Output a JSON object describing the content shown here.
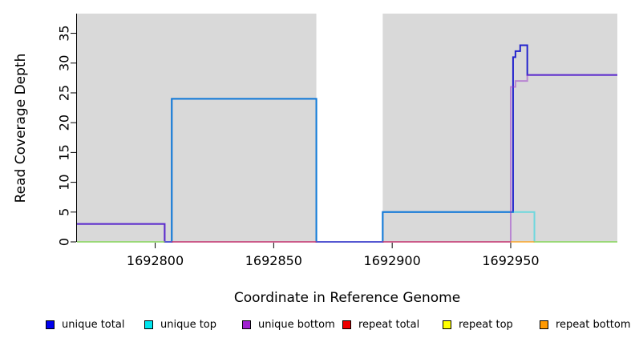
{
  "chart_data": {
    "type": "line",
    "subtype": "step-coverage",
    "title": "",
    "xlabel": "Coordinate in Reference Genome",
    "ylabel": "Read Coverage Depth",
    "xlim": [
      1692767,
      1692995
    ],
    "ylim": [
      0,
      38.3
    ],
    "x_ticks": [
      "1692800",
      "1692850",
      "1692900",
      "1692950"
    ],
    "x_tick_values": [
      1692800,
      1692850,
      1692900,
      1692950
    ],
    "y_ticks": [
      "0",
      "5",
      "10",
      "15",
      "20",
      "25",
      "30",
      "35"
    ],
    "y_tick_values": [
      0,
      5,
      10,
      15,
      20,
      25,
      30,
      35
    ],
    "grid": "off",
    "legend_position": "bottom",
    "panel_bg": "#ffffff",
    "shaded_bands": [
      {
        "x0": 1692767,
        "x1": 1692868,
        "color": "#d9d9d9"
      },
      {
        "x0": 1692896,
        "x1": 1692995,
        "color": "#d9d9d9"
      }
    ],
    "series": [
      {
        "name": "unique total",
        "color": "#2323cd",
        "opacity": 1,
        "width": 2,
        "segments": [
          [
            [
              1692767,
              3
            ],
            [
              1692804,
              0
            ],
            [
              1692807,
              24
            ],
            [
              1692868,
              0
            ],
            [
              1692896,
              5
            ],
            [
              1692951,
              31
            ],
            [
              1692952,
              32
            ],
            [
              1692954,
              33
            ],
            [
              1692957,
              28
            ],
            [
              1692995,
              28
            ]
          ]
        ]
      },
      {
        "name": "unique top",
        "color": "#00d8e4",
        "opacity": 0.5,
        "width": 2,
        "segments": [
          [
            [
              1692767,
              0
            ],
            [
              1692807,
              24
            ],
            [
              1692868,
              0
            ],
            [
              1692896,
              5
            ],
            [
              1692960,
              0
            ],
            [
              1692995,
              0
            ]
          ]
        ]
      },
      {
        "name": "unique bottom",
        "color": "#9933cc",
        "opacity": 0.5,
        "width": 2,
        "segments": [
          [
            [
              1692767,
              3
            ],
            [
              1692804,
              0
            ],
            [
              1692950,
              26
            ],
            [
              1692952,
              27
            ],
            [
              1692957,
              28
            ],
            [
              1692995,
              28
            ]
          ]
        ]
      },
      {
        "name": "repeat total",
        "color": "#e02020",
        "opacity": 0.55,
        "width": 1.6,
        "segments": [
          [
            [
              1692807,
              0
            ],
            [
              1692868,
              0
            ]
          ],
          [
            [
              1692896,
              0
            ],
            [
              1692950,
              0
            ]
          ]
        ]
      },
      {
        "name": "repeat top",
        "color": "#d6d600",
        "opacity": 0.6,
        "width": 1.6,
        "segments": [
          [
            [
              1692767,
              0
            ],
            [
              1692804,
              0
            ]
          ],
          [
            [
              1692960,
              0
            ],
            [
              1692995,
              0
            ]
          ]
        ]
      },
      {
        "name": "repeat bottom",
        "color": "#ff9900",
        "opacity": 0.8,
        "width": 1.6,
        "segments": [
          [
            [
              1692950,
              0
            ],
            [
              1692960,
              0
            ]
          ]
        ]
      }
    ],
    "legend": [
      {
        "label": "unique total",
        "color": "#0000ee"
      },
      {
        "label": "unique top",
        "color": "#00e5ee"
      },
      {
        "label": "unique bottom",
        "color": "#a020d0"
      },
      {
        "label": "repeat total",
        "color": "#ee0000"
      },
      {
        "label": "repeat top",
        "color": "#ffff00"
      },
      {
        "label": "repeat bottom",
        "color": "#ff9900"
      }
    ],
    "axis_color": "#000000"
  }
}
